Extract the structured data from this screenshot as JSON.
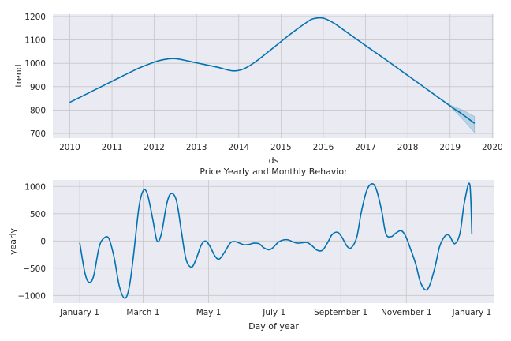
{
  "chart_data": [
    {
      "type": "line",
      "xlabel": "ds",
      "ylabel": "trend",
      "xlim": [
        2009.6,
        2020.05
      ],
      "ylim": [
        680,
        1210
      ],
      "xticks": [
        2010,
        2011,
        2012,
        2013,
        2014,
        2015,
        2016,
        2017,
        2018,
        2019,
        2020
      ],
      "xtick_labels": [
        "2010",
        "2011",
        "2012",
        "2013",
        "2014",
        "2015",
        "2016",
        "2017",
        "2018",
        "2019",
        "2020"
      ],
      "yticks": [
        700,
        800,
        900,
        1000,
        1100,
        1200
      ],
      "ytick_labels": [
        "700",
        "800",
        "900",
        "1000",
        "1100",
        "1200"
      ],
      "grid": true,
      "line_color": "#0072B2",
      "band_color": "#0072B2",
      "series": [
        {
          "x": [
            2010.0,
            2010.5,
            2011.0,
            2011.5,
            2011.75,
            2012.0,
            2012.2,
            2012.5,
            2013.0,
            2013.5,
            2013.85,
            2014.1,
            2014.4,
            2014.8,
            2015.2,
            2015.55,
            2015.75,
            2016.0,
            2016.25,
            2016.5,
            2017.0,
            2017.5,
            2018.0,
            2018.5,
            2019.0,
            2019.3,
            2019.58
          ],
          "y": [
            833,
            878,
            923,
            968,
            988,
            1005,
            1015,
            1020,
            1002,
            983,
            968,
            975,
            1007,
            1064,
            1122,
            1168,
            1190,
            1193,
            1172,
            1140,
            1076,
            1013,
            948,
            883,
            818,
            781,
            743
          ]
        }
      ],
      "uncertainty_band": {
        "x": [
          2018.8,
          2019.0,
          2019.3,
          2019.58
        ],
        "lower": [
          843,
          816,
          760,
          704
        ],
        "upper": [
          843,
          822,
          800,
          773
        ]
      }
    },
    {
      "type": "line",
      "title": "Price Yearly and Monthly Behavior",
      "xlabel": "Day of year",
      "ylabel": "yearly",
      "xlim": [
        -25,
        386
      ],
      "ylim": [
        -1140,
        1120
      ],
      "xticks": [
        0,
        59,
        120,
        181,
        243,
        304,
        365
      ],
      "xtick_labels": [
        "January 1",
        "March 1",
        "May 1",
        "July 1",
        "September 1",
        "November 1",
        "January 1"
      ],
      "yticks": [
        -1000,
        -500,
        0,
        500,
        1000
      ],
      "ytick_labels": [
        "−1000",
        "−500",
        "0",
        "500",
        "1000"
      ],
      "grid": true,
      "line_color": "#0072B2",
      "series": [
        {
          "x": [
            0,
            5,
            9,
            13,
            18,
            22,
            27,
            32,
            37,
            42,
            46,
            50,
            55,
            59,
            63,
            68,
            72,
            76,
            81,
            85,
            90,
            95,
            99,
            104,
            108,
            113,
            117,
            121,
            126,
            130,
            135,
            140,
            144,
            149,
            153,
            158,
            162,
            167,
            171,
            176,
            180,
            185,
            190,
            194,
            199,
            203,
            208,
            212,
            217,
            221,
            226,
            231,
            235,
            240,
            244,
            249,
            253,
            258,
            262,
            267,
            272,
            276,
            281,
            285,
            290,
            294,
            299,
            303,
            308,
            313,
            317,
            322,
            326,
            331,
            335,
            340,
            344,
            349,
            354,
            358,
            363,
            365
          ],
          "y": [
            -30,
            -600,
            -760,
            -640,
            -120,
            40,
            50,
            -300,
            -840,
            -1050,
            -860,
            -280,
            600,
            920,
            860,
            400,
            0,
            130,
            680,
            870,
            740,
            130,
            -340,
            -480,
            -350,
            -80,
            0,
            -90,
            -280,
            -330,
            -200,
            -40,
            -10,
            -40,
            -70,
            -60,
            -40,
            -50,
            -120,
            -160,
            -120,
            -20,
            20,
            20,
            -20,
            -40,
            -30,
            -30,
            -100,
            -170,
            -170,
            -20,
            120,
            160,
            70,
            -100,
            -120,
            80,
            520,
            920,
            1050,
            950,
            560,
            130,
            80,
            140,
            190,
            100,
            -150,
            -440,
            -750,
            -900,
            -800,
            -450,
            -100,
            90,
            100,
            -50,
            150,
            700,
            1040,
            120
          ]
        }
      ]
    }
  ]
}
